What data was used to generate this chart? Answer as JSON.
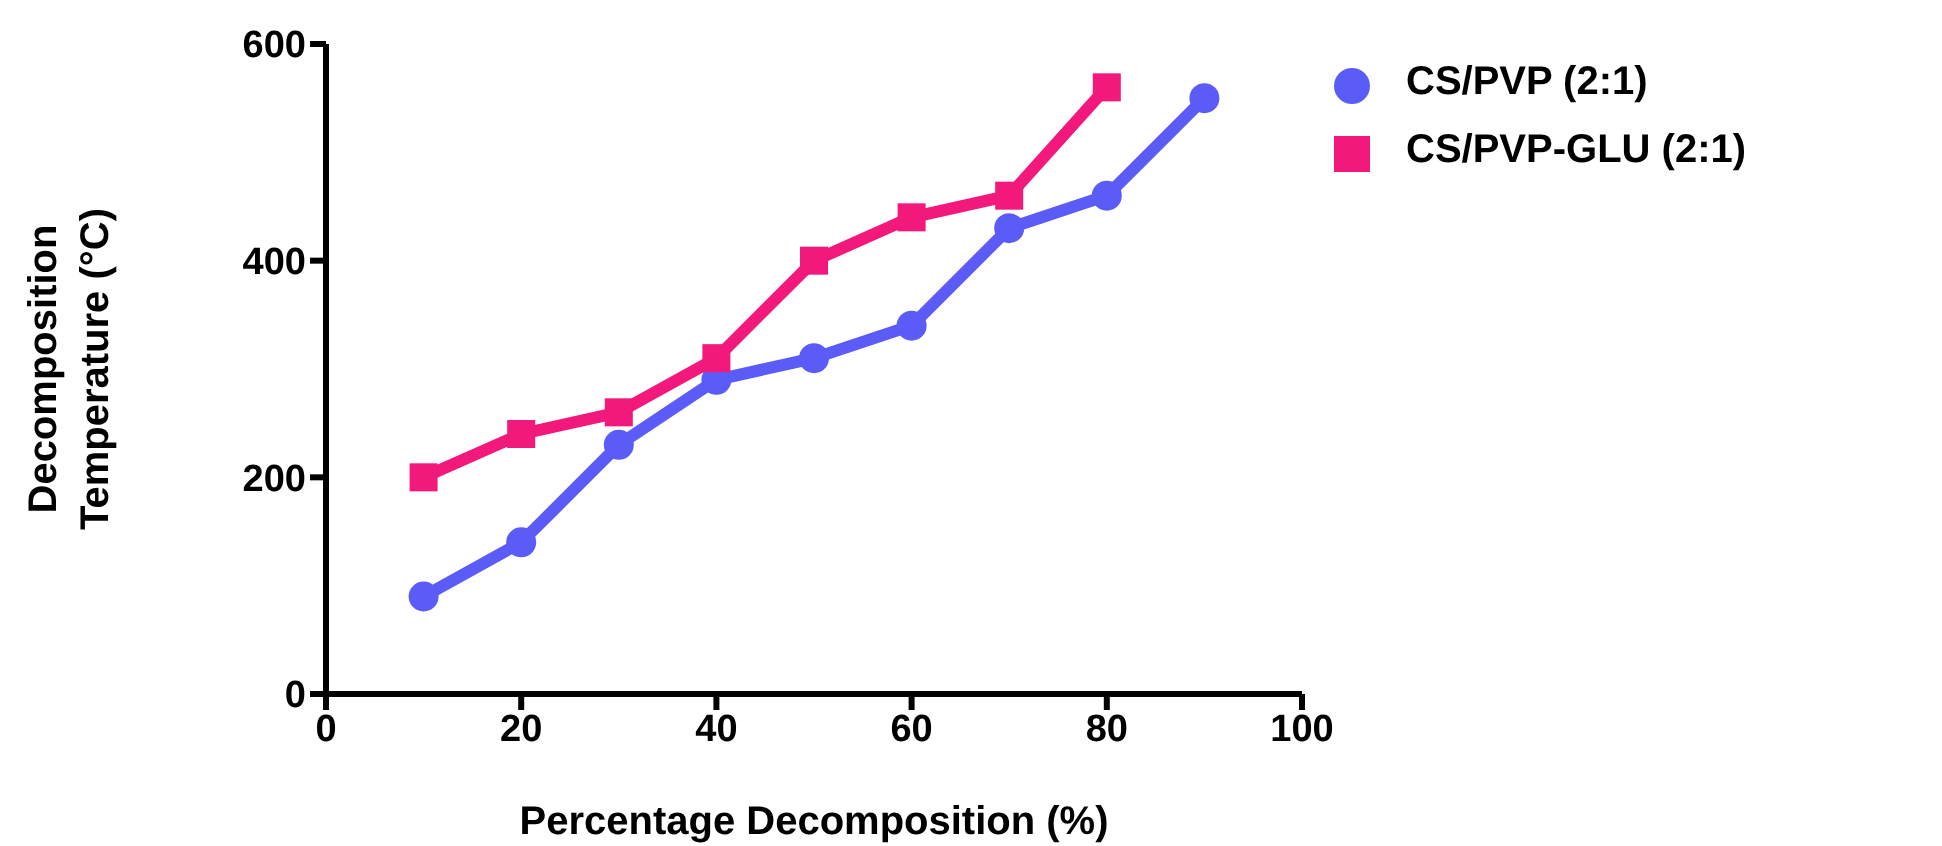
{
  "chart_data": {
    "type": "line",
    "xlabel": "Percentage Decomposition (%)",
    "ylabel": "Decomposition Temperature (°C)",
    "xlim": [
      0,
      100
    ],
    "xticks": [
      0,
      20,
      40,
      60,
      80,
      100
    ],
    "ylim": [
      0,
      600
    ],
    "yticks": [
      0,
      200,
      400,
      600
    ],
    "grid": false,
    "legend": "top right",
    "line_style": "solid",
    "series": [
      {
        "name": "CS/PVP (2:1)",
        "color": "#5b5bf7",
        "marker": "circle",
        "x": [
          10,
          20,
          30,
          40,
          50,
          60,
          70,
          80,
          90
        ],
        "values": [
          90,
          140,
          230,
          290,
          310,
          340,
          430,
          460,
          550
        ]
      },
      {
        "name": "CS/PVP-GLU (2:1)",
        "color": "#f2187c",
        "marker": "square",
        "x": [
          10,
          20,
          30,
          40,
          50,
          60,
          70,
          80
        ],
        "values": [
          200,
          240,
          260,
          310,
          400,
          440,
          460,
          560
        ]
      }
    ]
  }
}
